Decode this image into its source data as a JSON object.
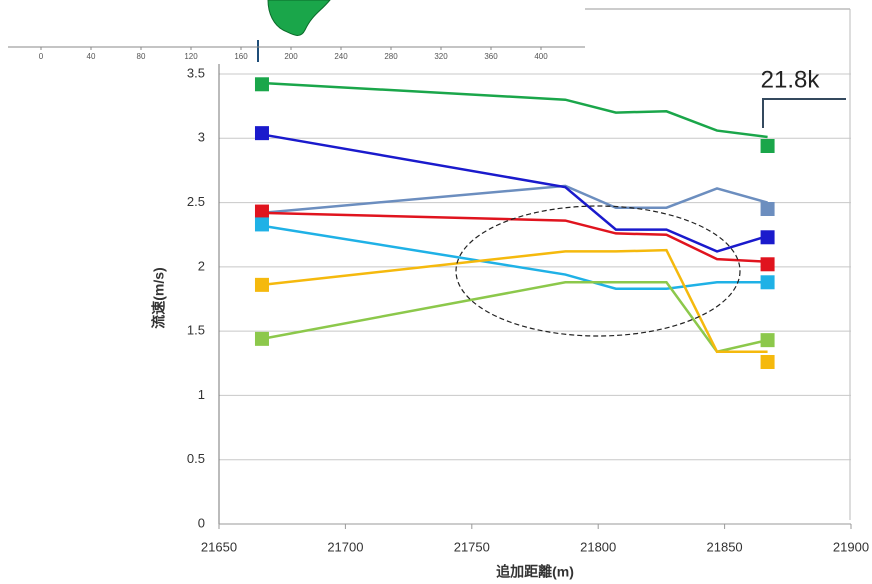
{
  "chart_data": [
    {
      "type": "line",
      "y_label": "流速(m/s)",
      "x_label": "追加距離(m)",
      "annotation": "21.8k",
      "xlim": [
        21650,
        21900
      ],
      "xticks": [
        21650,
        21700,
        21750,
        21800,
        21850,
        21900
      ],
      "ylim": [
        0,
        3.5
      ],
      "yticks": [
        0,
        0.5,
        1,
        1.5,
        2,
        2.5,
        3,
        3.5
      ],
      "grid": true,
      "x": [
        21667,
        21787,
        21807,
        21827,
        21847,
        21867
      ],
      "marker_x": [
        21667,
        21867
      ],
      "series": [
        {
          "color": "#1aa64a",
          "values": [
            3.43,
            3.3,
            3.2,
            3.21,
            3.06,
            3.01
          ],
          "marker_values": [
            3.42,
            2.94
          ]
        },
        {
          "color": "#6c8ebf",
          "values": [
            2.42,
            2.63,
            2.46,
            2.46,
            2.61,
            2.5
          ],
          "marker_values": [
            null,
            2.45
          ]
        },
        {
          "color": "#e0141e",
          "values": [
            2.42,
            2.36,
            2.26,
            2.25,
            2.06,
            2.04
          ],
          "marker_values": [
            2.43,
            2.02
          ]
        },
        {
          "color": "#1a1acc",
          "values": [
            3.03,
            2.62,
            2.29,
            2.29,
            2.12,
            2.24
          ],
          "marker_values": [
            3.04,
            2.23
          ]
        },
        {
          "color": "#1fb1e6",
          "values": [
            2.32,
            1.94,
            1.83,
            1.83,
            1.88,
            1.88
          ],
          "marker_values": [
            2.33,
            1.88
          ]
        },
        {
          "color": "#8cc84b",
          "values": [
            1.44,
            1.88,
            1.88,
            1.88,
            1.34,
            1.43
          ],
          "marker_values": [
            1.44,
            1.43
          ]
        },
        {
          "color": "#f5b90d",
          "values": [
            1.86,
            2.12,
            2.12,
            2.13,
            1.34,
            1.34
          ],
          "marker_values": [
            1.86,
            1.26
          ]
        }
      ]
    },
    {
      "type": "axis",
      "xlim": [
        -26.4,
        435.2
      ],
      "xticks": [
        0,
        40,
        80,
        120,
        160,
        200,
        240,
        280,
        320,
        360,
        400
      ]
    }
  ]
}
